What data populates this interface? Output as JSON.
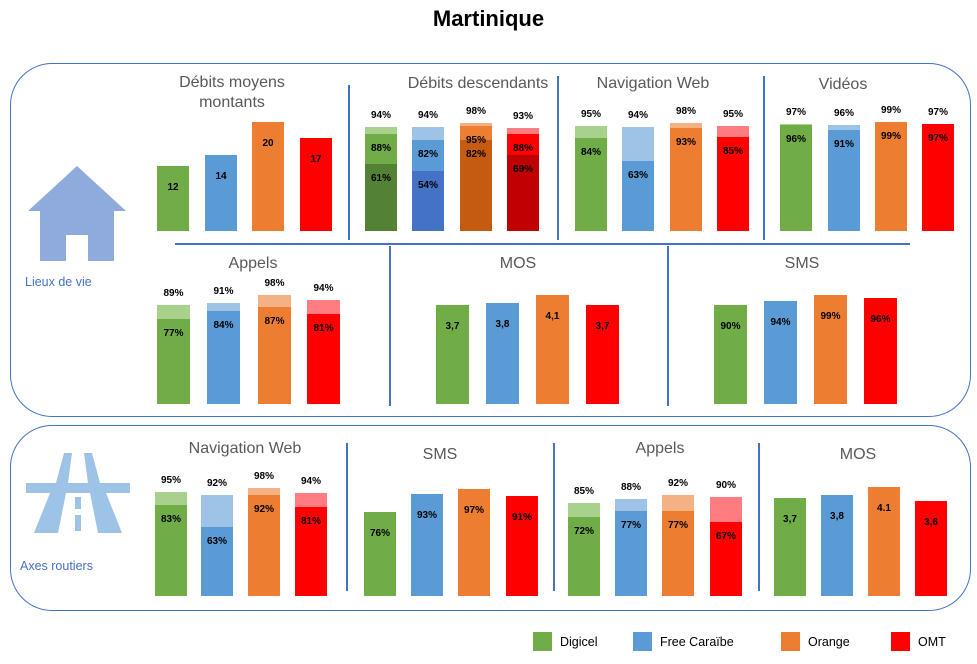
{
  "title": "Martinique",
  "operators": [
    {
      "name": "Digicel",
      "color": "#70ad47",
      "light": "#a9d18e",
      "dark": "#548235"
    },
    {
      "name": "Free Caraïbe",
      "color": "#5b9bd5",
      "light": "#9dc3e6",
      "dark": "#4472c4"
    },
    {
      "name": "Orange",
      "color": "#ed7d31",
      "light": "#f4b183",
      "dark": "#c55a11"
    },
    {
      "name": "OMT",
      "color": "#ff0000",
      "light": "#ff7c80",
      "dark": "#c00000"
    }
  ],
  "sections": [
    {
      "label": "Lieux de vie",
      "icon": "house-icon"
    },
    {
      "label": "Axes routiers",
      "icon": "highway-icon"
    }
  ],
  "chart_data": [
    {
      "id": "lv-debits-montants",
      "section": "Lieux de vie",
      "type": "bar",
      "title_lines": [
        "Débits moyens",
        "montants"
      ],
      "bars": [
        {
          "layers": [
            12
          ],
          "labels": [
            "12"
          ]
        },
        {
          "layers": [
            14
          ],
          "labels": [
            "14"
          ]
        },
        {
          "layers": [
            20
          ],
          "labels": [
            "20"
          ]
        },
        {
          "layers": [
            17
          ],
          "labels": [
            "17"
          ]
        }
      ]
    },
    {
      "id": "lv-debits-descendants",
      "section": "Lieux de vie",
      "type": "bar",
      "title_lines": [
        "Débits descendants"
      ],
      "bars": [
        {
          "layers": [
            61,
            88,
            94
          ],
          "labels": [
            "61%",
            "88%",
            "94%"
          ]
        },
        {
          "layers": [
            54,
            82,
            94
          ],
          "labels": [
            "54%",
            "82%",
            "94%"
          ]
        },
        {
          "layers": [
            82,
            95,
            98
          ],
          "labels": [
            "82%",
            "95%",
            "98%"
          ]
        },
        {
          "layers": [
            69,
            88,
            93
          ],
          "labels": [
            "69%",
            "88%",
            "93%"
          ]
        }
      ]
    },
    {
      "id": "lv-navigation-web",
      "section": "Lieux de vie",
      "type": "bar",
      "title_lines": [
        "Navigation Web"
      ],
      "bars": [
        {
          "layers": [
            84,
            95
          ],
          "labels": [
            "84%",
            "95%"
          ]
        },
        {
          "layers": [
            63,
            94
          ],
          "labels": [
            "63%",
            "94%"
          ]
        },
        {
          "layers": [
            93,
            98
          ],
          "labels": [
            "93%",
            "98%"
          ]
        },
        {
          "layers": [
            85,
            95
          ],
          "labels": [
            "85%",
            "95%"
          ]
        }
      ]
    },
    {
      "id": "lv-videos",
      "section": "Lieux de vie",
      "type": "bar",
      "title_lines": [
        "Vidéos"
      ],
      "bars": [
        {
          "layers": [
            96,
            97
          ],
          "labels": [
            "96%",
            "97%"
          ]
        },
        {
          "layers": [
            91,
            96
          ],
          "labels": [
            "91%",
            "96%"
          ]
        },
        {
          "layers": [
            99,
            99
          ],
          "labels": [
            "99%",
            "99%"
          ]
        },
        {
          "layers": [
            97,
            97
          ],
          "labels": [
            "97%",
            "97%"
          ]
        }
      ]
    },
    {
      "id": "lv-appels",
      "section": "Lieux de vie",
      "type": "bar",
      "title_lines": [
        "Appels"
      ],
      "bars": [
        {
          "layers": [
            77,
            89
          ],
          "labels": [
            "77%",
            "89%"
          ]
        },
        {
          "layers": [
            84,
            91
          ],
          "labels": [
            "84%",
            "91%"
          ]
        },
        {
          "layers": [
            87,
            98
          ],
          "labels": [
            "87%",
            "98%"
          ]
        },
        {
          "layers": [
            81,
            94
          ],
          "labels": [
            "81%",
            "94%"
          ]
        }
      ]
    },
    {
      "id": "lv-mos",
      "section": "Lieux de vie",
      "type": "bar",
      "title_lines": [
        "MOS"
      ],
      "bars": [
        {
          "layers": [
            3.7
          ],
          "labels": [
            "3,7"
          ]
        },
        {
          "layers": [
            3.8
          ],
          "labels": [
            "3,8"
          ]
        },
        {
          "layers": [
            4.1
          ],
          "labels": [
            "4,1"
          ]
        },
        {
          "layers": [
            3.7
          ],
          "labels": [
            "3,7"
          ]
        }
      ]
    },
    {
      "id": "lv-sms",
      "section": "Lieux de vie",
      "type": "bar",
      "title_lines": [
        "SMS"
      ],
      "bars": [
        {
          "layers": [
            90
          ],
          "labels": [
            "90%"
          ]
        },
        {
          "layers": [
            94
          ],
          "labels": [
            "94%"
          ]
        },
        {
          "layers": [
            99
          ],
          "labels": [
            "99%"
          ]
        },
        {
          "layers": [
            96
          ],
          "labels": [
            "96%"
          ]
        }
      ]
    },
    {
      "id": "ar-navigation-web",
      "section": "Axes routiers",
      "type": "bar",
      "title_lines": [
        "Navigation Web"
      ],
      "bars": [
        {
          "layers": [
            83,
            95
          ],
          "labels": [
            "83%",
            "95%"
          ]
        },
        {
          "layers": [
            63,
            92
          ],
          "labels": [
            "63%",
            "92%"
          ]
        },
        {
          "layers": [
            92,
            98
          ],
          "labels": [
            "92%",
            "98%"
          ]
        },
        {
          "layers": [
            81,
            94
          ],
          "labels": [
            "81%",
            "94%"
          ]
        }
      ]
    },
    {
      "id": "ar-sms",
      "section": "Axes routiers",
      "type": "bar",
      "title_lines": [
        "SMS"
      ],
      "bars": [
        {
          "layers": [
            76
          ],
          "labels": [
            "76%"
          ]
        },
        {
          "layers": [
            93
          ],
          "labels": [
            "93%"
          ]
        },
        {
          "layers": [
            97
          ],
          "labels": [
            "97%"
          ]
        },
        {
          "layers": [
            91
          ],
          "labels": [
            "91%"
          ]
        }
      ]
    },
    {
      "id": "ar-appels",
      "section": "Axes routiers",
      "type": "bar",
      "title_lines": [
        "Appels"
      ],
      "bars": [
        {
          "layers": [
            72,
            85
          ],
          "labels": [
            "72%",
            "85%"
          ]
        },
        {
          "layers": [
            77,
            88
          ],
          "labels": [
            "77%",
            "88%"
          ]
        },
        {
          "layers": [
            77,
            92
          ],
          "labels": [
            "77%",
            "92%"
          ]
        },
        {
          "layers": [
            67,
            90
          ],
          "labels": [
            "67%",
            "90%"
          ]
        }
      ]
    },
    {
      "id": "ar-mos",
      "section": "Axes routiers",
      "type": "bar",
      "title_lines": [
        "MOS"
      ],
      "bars": [
        {
          "layers": [
            3.7
          ],
          "labels": [
            "3,7"
          ]
        },
        {
          "layers": [
            3.8
          ],
          "labels": [
            "3,8"
          ]
        },
        {
          "layers": [
            4.1
          ],
          "labels": [
            "4.1"
          ]
        },
        {
          "layers": [
            3.6
          ],
          "labels": [
            "3,6"
          ]
        }
      ]
    }
  ]
}
